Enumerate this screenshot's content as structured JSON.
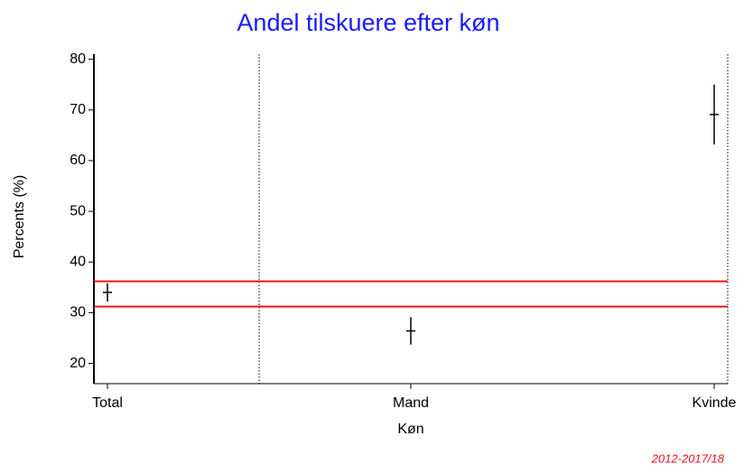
{
  "chart_data": {
    "type": "errorbar",
    "title": "Andel tilskuere efter køn",
    "x_label": "Køn",
    "y_label": "Percents (%)",
    "footnote": "2012-2017/18",
    "categories": [
      "Total",
      "Mand",
      "Kvinde"
    ],
    "values": [
      34,
      26.4,
      69.1
    ],
    "errors": [
      1.8,
      2.7,
      5.9
    ],
    "color": "#000000",
    "reference_lines": [
      36.2,
      31.2
    ],
    "reference_color": "#e8141c",
    "ylim": [
      16,
      81
    ],
    "yticks": [
      20,
      30,
      40,
      50,
      60,
      70,
      80
    ]
  }
}
